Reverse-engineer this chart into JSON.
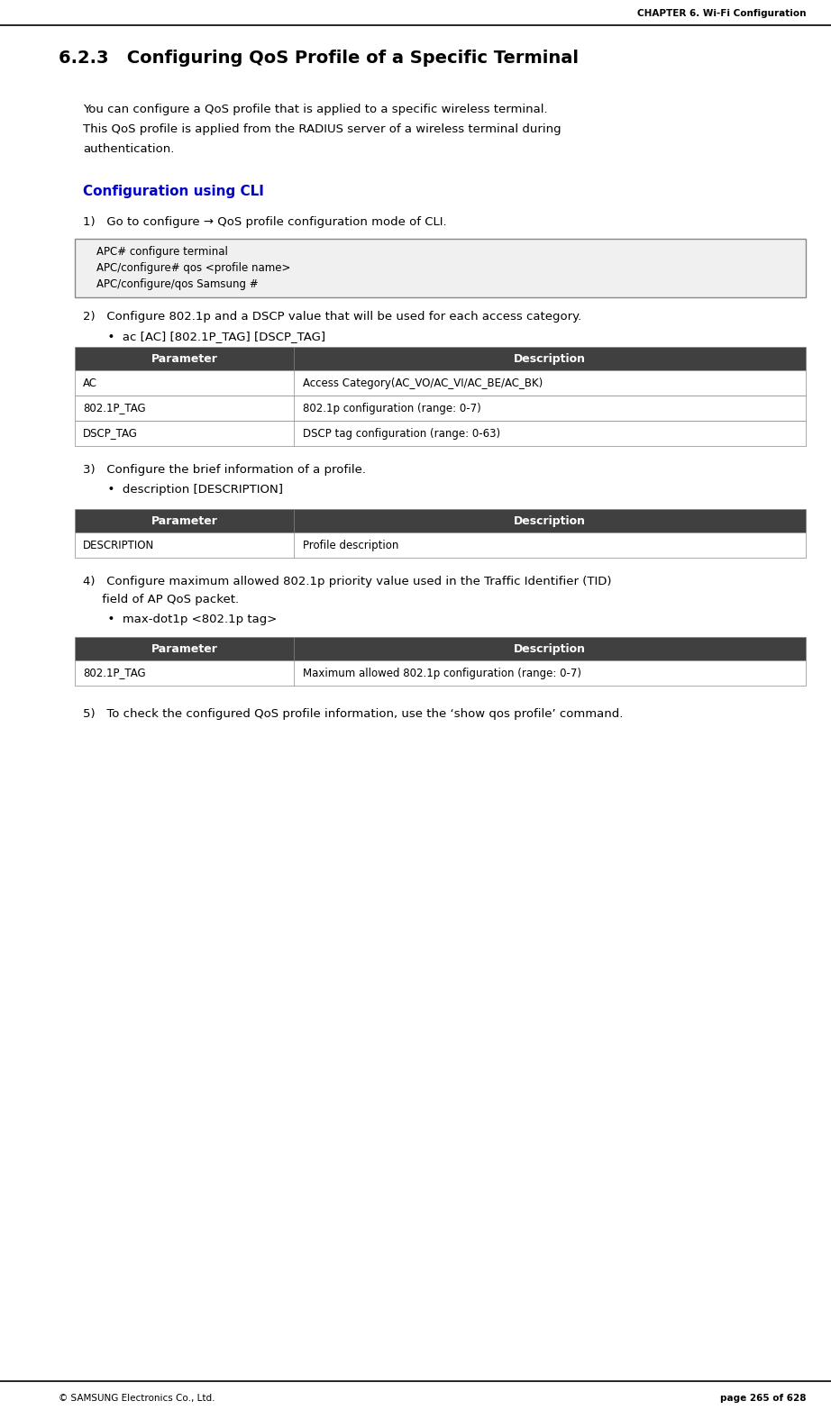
{
  "page_width": 9.22,
  "page_height": 15.65,
  "bg_color": "#ffffff",
  "header_text": "CHAPTER 6. Wi-Fi Configuration",
  "footer_left": "© SAMSUNG Electronics Co., Ltd.",
  "footer_right": "page 265 of 628",
  "section_title": "6.2.3   Configuring QoS Profile of a Specific Terminal",
  "intro_lines": [
    "You can configure a QoS profile that is applied to a specific wireless terminal.",
    "This QoS profile is applied from the RADIUS server of a wireless terminal during",
    "authentication."
  ],
  "cli_heading": "Configuration using CLI",
  "cli_color": "#0000cc",
  "step1_text": "1)   Go to configure → QoS profile configuration mode of CLI.",
  "code_block": [
    "    APC# configure terminal",
    "    APC/configure# qos <profile name>",
    "    APC/configure/qos Samsung #"
  ],
  "code_bg": "#f0f0f0",
  "code_border": "#888888",
  "step2_text": "2)   Configure 802.1p and a DSCP value that will be used for each access category.",
  "step2_bullet": "  •  ac [AC] [802.1P_TAG] [DSCP_TAG]",
  "table1_header": [
    "Parameter",
    "Description"
  ],
  "table1_rows": [
    [
      "AC",
      "Access Category(AC_VO/AC_VI/AC_BE/AC_BK)"
    ],
    [
      "802.1P_TAG",
      "802.1p configuration (range: 0-7)"
    ],
    [
      "DSCP_TAG",
      "DSCP tag configuration (range: 0-63)"
    ]
  ],
  "table_header_bg": "#404040",
  "table_header_fg": "#ffffff",
  "table_row_bg": "#ffffff",
  "table_border": "#888888",
  "step3_text": "3)   Configure the brief information of a profile.",
  "step3_bullet": "  •  description [DESCRIPTION]",
  "table2_header": [
    "Parameter",
    "Description"
  ],
  "table2_rows": [
    [
      "DESCRIPTION",
      "Profile description"
    ]
  ],
  "step4_text1": "4)   Configure maximum allowed 802.1p priority value used in the Traffic Identifier (TID)",
  "step4_text2": "     field of AP QoS packet.",
  "step4_bullet": "  •  max-dot1p <802.1p tag>",
  "table3_header": [
    "Parameter",
    "Description"
  ],
  "table3_rows": [
    [
      "802.1P_TAG",
      "Maximum allowed 802.1p configuration (range: 0-7)"
    ]
  ],
  "step5_text": "5)   To check the configured QoS profile information, use the ‘show qos profile’ command."
}
